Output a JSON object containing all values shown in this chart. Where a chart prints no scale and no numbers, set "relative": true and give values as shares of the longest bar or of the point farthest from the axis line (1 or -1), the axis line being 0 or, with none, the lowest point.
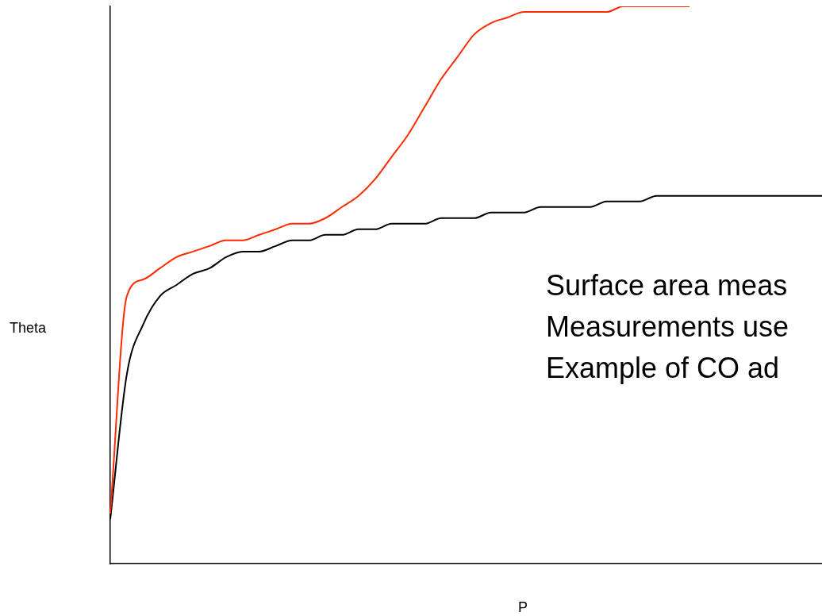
{
  "chart_data": {
    "type": "line",
    "relative": true,
    "xlabel": "P",
    "ylabel": "Theta",
    "grid": false,
    "legend": false,
    "annotations": [
      "Surface area meas",
      "Measurements use",
      "Example of CO ad"
    ],
    "categories": [
      null,
      null,
      null,
      null,
      null,
      null,
      null,
      null,
      null,
      null,
      null,
      null,
      null,
      null,
      null,
      null,
      null,
      null,
      null,
      null,
      null,
      null,
      null,
      null,
      null,
      null,
      null,
      null,
      null,
      null,
      null,
      null,
      null,
      null,
      null,
      null,
      null,
      null,
      null,
      null,
      null,
      null,
      null,
      null
    ],
    "series": [
      {
        "color": "#ff2a00",
        "values": [
          0.09,
          0.48,
          0.51,
          0.53,
          0.55,
          0.56,
          0.57,
          0.58,
          0.58,
          0.59,
          0.6,
          0.61,
          0.61,
          0.62,
          0.64,
          0.66,
          0.69,
          0.73,
          0.77,
          0.82,
          0.87,
          0.91,
          0.95,
          0.97,
          0.98,
          0.99,
          0.99,
          0.99,
          0.99,
          0.99,
          0.99,
          1,
          1,
          1,
          1,
          1,
          null,
          null,
          null,
          null,
          null,
          null,
          null,
          null
        ]
      },
      {
        "color": "#000000",
        "values": [
          0.08,
          0.34,
          0.43,
          0.48,
          0.5,
          0.52,
          0.53,
          0.55,
          0.56,
          0.56,
          0.57,
          0.58,
          0.58,
          0.59,
          0.59,
          0.6,
          0.6,
          0.61,
          0.61,
          0.61,
          0.62,
          0.62,
          0.62,
          0.63,
          0.63,
          0.63,
          0.64,
          0.64,
          0.64,
          0.64,
          0.65,
          0.65,
          0.65,
          0.66,
          0.66,
          0.66,
          0.66,
          0.66,
          0.66,
          0.66,
          0.66,
          0.66,
          0.66,
          0.66
        ]
      }
    ]
  }
}
